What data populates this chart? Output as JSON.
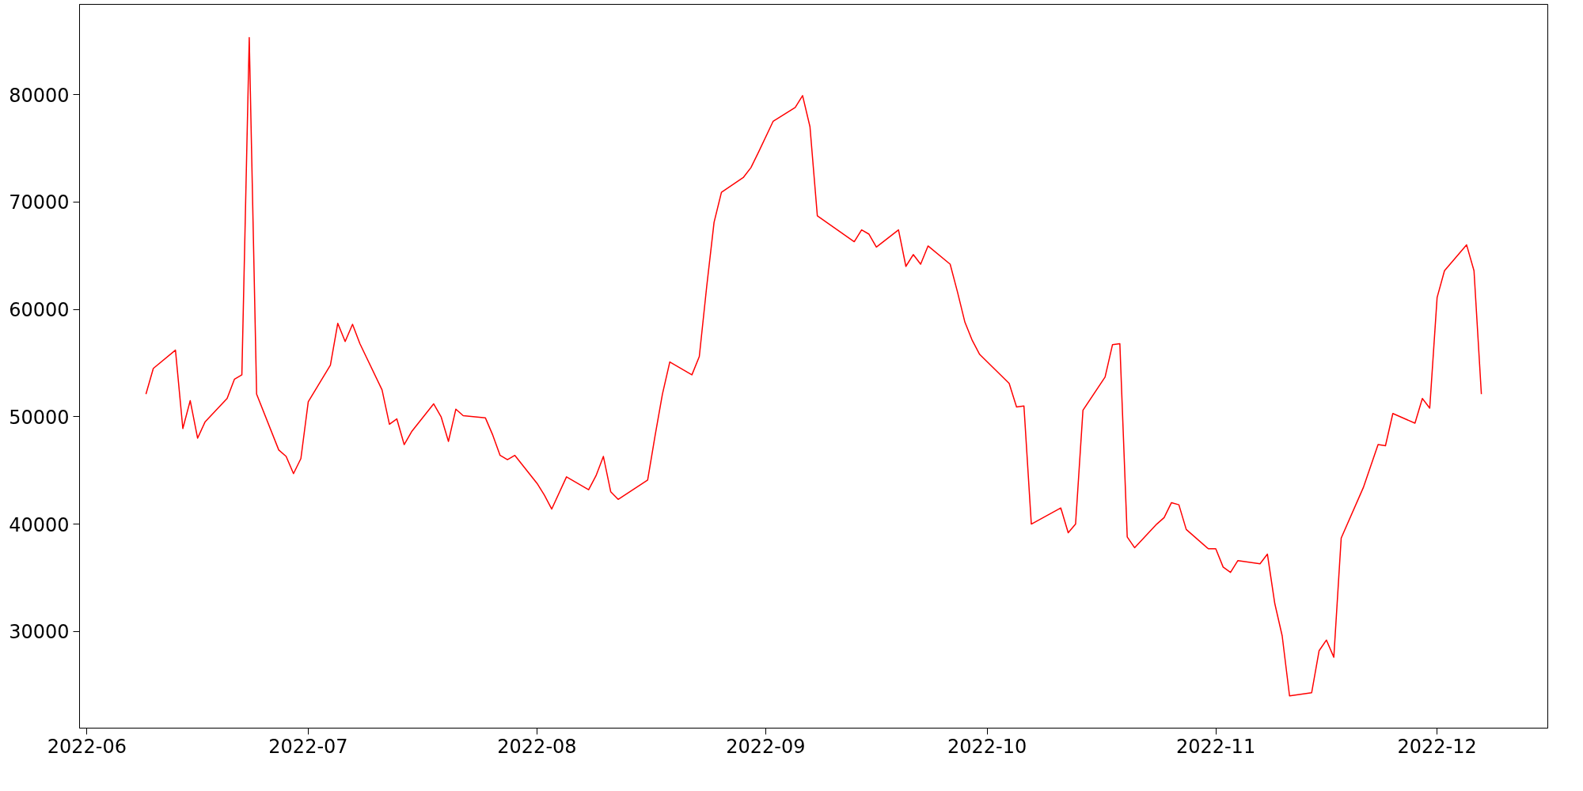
{
  "chart_data": {
    "type": "line",
    "xlim": [
      "2022-05-31",
      "2022-12-16"
    ],
    "ylim": [
      21000,
      88400
    ],
    "xticks": [
      {
        "value": "2022-06-01",
        "label": "2022-06"
      },
      {
        "value": "2022-07-01",
        "label": "2022-07"
      },
      {
        "value": "2022-08-01",
        "label": "2022-08"
      },
      {
        "value": "2022-09-01",
        "label": "2022-09"
      },
      {
        "value": "2022-10-01",
        "label": "2022-10"
      },
      {
        "value": "2022-11-01",
        "label": "2022-11"
      },
      {
        "value": "2022-12-01",
        "label": "2022-12"
      }
    ],
    "yticks": [
      30000,
      40000,
      50000,
      60000,
      70000,
      80000
    ],
    "grid": false,
    "marker": "none",
    "line_style": "solid",
    "series": [
      {
        "color": "#ff0000",
        "x": [
          "2022-06-09",
          "2022-06-10",
          "2022-06-13",
          "2022-06-14",
          "2022-06-15",
          "2022-06-16",
          "2022-06-17",
          "2022-06-20",
          "2022-06-21",
          "2022-06-22",
          "2022-06-23",
          "2022-06-24",
          "2022-06-27",
          "2022-06-28",
          "2022-06-29",
          "2022-06-30",
          "2022-07-01",
          "2022-07-04",
          "2022-07-05",
          "2022-07-06",
          "2022-07-07",
          "2022-07-08",
          "2022-07-11",
          "2022-07-12",
          "2022-07-13",
          "2022-07-14",
          "2022-07-15",
          "2022-07-18",
          "2022-07-19",
          "2022-07-20",
          "2022-07-21",
          "2022-07-22",
          "2022-07-25",
          "2022-07-26",
          "2022-07-27",
          "2022-07-28",
          "2022-07-29",
          "2022-08-01",
          "2022-08-02",
          "2022-08-03",
          "2022-08-05",
          "2022-08-08",
          "2022-08-09",
          "2022-08-10",
          "2022-08-11",
          "2022-08-12",
          "2022-08-16",
          "2022-08-17",
          "2022-08-18",
          "2022-08-19",
          "2022-08-22",
          "2022-08-23",
          "2022-08-24",
          "2022-08-25",
          "2022-08-26",
          "2022-08-29",
          "2022-08-30",
          "2022-08-31",
          "2022-09-02",
          "2022-09-05",
          "2022-09-06",
          "2022-09-07",
          "2022-09-08",
          "2022-09-13",
          "2022-09-14",
          "2022-09-15",
          "2022-09-16",
          "2022-09-19",
          "2022-09-20",
          "2022-09-21",
          "2022-09-22",
          "2022-09-23",
          "2022-09-26",
          "2022-09-27",
          "2022-09-28",
          "2022-09-29",
          "2022-09-30",
          "2022-10-04",
          "2022-10-05",
          "2022-10-06",
          "2022-10-07",
          "2022-10-11",
          "2022-10-12",
          "2022-10-13",
          "2022-10-14",
          "2022-10-17",
          "2022-10-18",
          "2022-10-19",
          "2022-10-20",
          "2022-10-21",
          "2022-10-24",
          "2022-10-25",
          "2022-10-26",
          "2022-10-27",
          "2022-10-28",
          "2022-10-31",
          "2022-11-01",
          "2022-11-02",
          "2022-11-03",
          "2022-11-04",
          "2022-11-07",
          "2022-11-08",
          "2022-11-09",
          "2022-11-10",
          "2022-11-11",
          "2022-11-14",
          "2022-11-15",
          "2022-11-16",
          "2022-11-17",
          "2022-11-18",
          "2022-11-21",
          "2022-11-22",
          "2022-11-23",
          "2022-11-24",
          "2022-11-25",
          "2022-11-28",
          "2022-11-29",
          "2022-11-30",
          "2022-12-01",
          "2022-12-02",
          "2022-12-05",
          "2022-12-06",
          "2022-12-07"
        ],
        "values": [
          52100,
          54500,
          56200,
          48900,
          51500,
          48000,
          49500,
          51700,
          53500,
          53900,
          85300,
          52100,
          46900,
          46300,
          44700,
          46100,
          51400,
          54800,
          58700,
          57000,
          58600,
          56800,
          52500,
          49300,
          49800,
          47400,
          48600,
          51200,
          50000,
          47700,
          50700,
          50100,
          49900,
          48300,
          46400,
          46000,
          46400,
          43800,
          42700,
          41400,
          44400,
          43200,
          44500,
          46300,
          43000,
          42300,
          44100,
          48200,
          52100,
          55100,
          53900,
          55600,
          62100,
          68100,
          70900,
          72300,
          73200,
          74600,
          77500,
          78800,
          79900,
          77000,
          68700,
          66300,
          67400,
          67000,
          65800,
          67400,
          64000,
          65100,
          64200,
          65900,
          64200,
          61600,
          58800,
          57100,
          55800,
          53100,
          50900,
          51000,
          40000,
          41500,
          39200,
          40000,
          50600,
          53700,
          56700,
          56800,
          38800,
          37800,
          40000,
          40600,
          42000,
          41800,
          39500,
          37700,
          37700,
          36000,
          35500,
          36600,
          36300,
          37200,
          32600,
          29600,
          24000,
          24300,
          28200,
          29200,
          27600,
          38700,
          43400,
          45400,
          47400,
          47300,
          50300,
          49400,
          51700,
          50800,
          61100,
          63600,
          66000,
          63600,
          52100
        ]
      }
    ]
  }
}
